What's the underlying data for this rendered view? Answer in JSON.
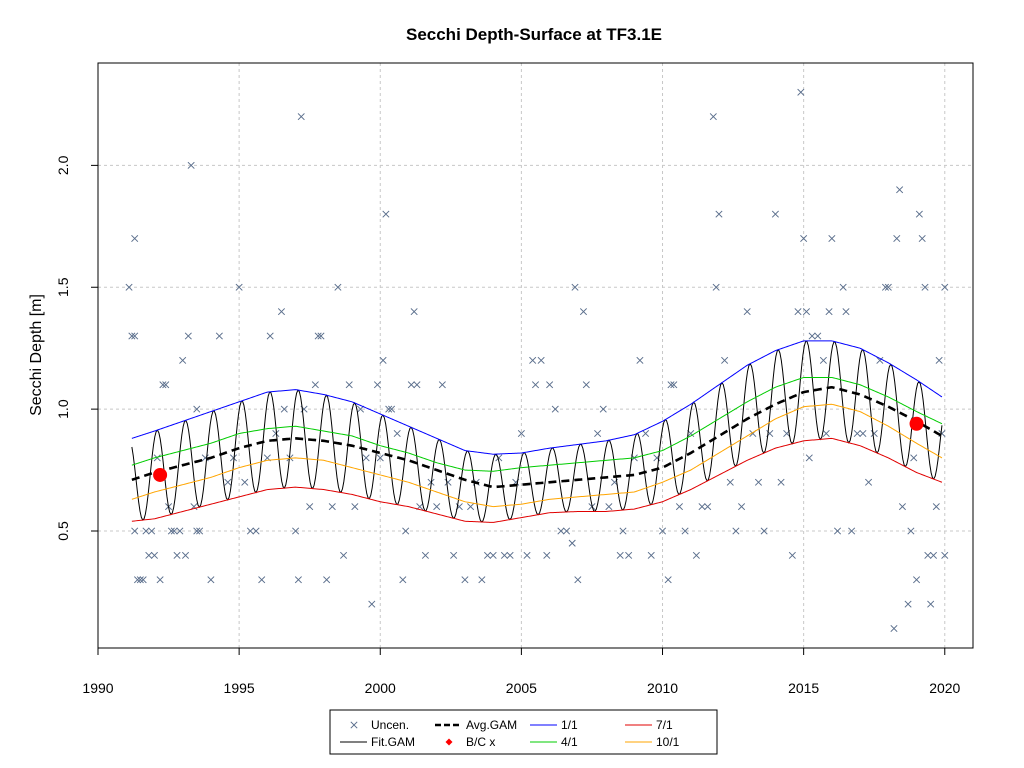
{
  "chart_data": {
    "type": "scatter",
    "title": "Secchi Depth-Surface at TF3.1E",
    "xlabel": "",
    "ylabel": "Secchi Depth [m]",
    "xlim": [
      1990,
      2021
    ],
    "ylim": [
      0.02,
      2.42
    ],
    "x_ticks": [
      1990,
      1995,
      2000,
      2005,
      2010,
      2015,
      2020
    ],
    "x_tick_labels": [
      "1990",
      "1995",
      "2000",
      "2005",
      "2010",
      "2015",
      "2020"
    ],
    "y_ticks": [
      0.5,
      1.0,
      1.5,
      2.0
    ],
    "y_tick_labels": [
      "0.5",
      "1.0",
      "1.5",
      "2.0"
    ],
    "grid": true,
    "legend_placement": "bottom-center, outside plot",
    "legend": [
      {
        "label": "Uncen.",
        "symbol": "x",
        "color": "#5a6e8c"
      },
      {
        "label": "Avg.GAM",
        "symbol": "dashed-line",
        "color": "#000000"
      },
      {
        "label": "1/1",
        "symbol": "line",
        "color": "#0000ff"
      },
      {
        "label": "7/1",
        "symbol": "line",
        "color": "#e00000"
      },
      {
        "label": "Fit.GAM",
        "symbol": "line",
        "color": "#000000"
      },
      {
        "label": "B/C x",
        "symbol": "diamond",
        "color": "#ff0000"
      },
      {
        "label": "4/1",
        "symbol": "line",
        "color": "#00cc00"
      },
      {
        "label": "10/1",
        "symbol": "line",
        "color": "#ffa500"
      }
    ],
    "colors": {
      "points": "#5a6e8c",
      "fit": "#000000",
      "avg": "#000000",
      "d1_1": "#0000ff",
      "d4_1": "#00cc00",
      "d7_1": "#e00000",
      "d10_1": "#ffa500",
      "bc": "#ff0000"
    },
    "trend_curves": {
      "x": [
        1991.2,
        1992,
        1993,
        1994,
        1995,
        1996,
        1997,
        1998,
        1999,
        2000,
        2001,
        2002,
        2003,
        2004,
        2005,
        2006,
        2007,
        2008,
        2009,
        2010,
        2011,
        2012,
        2013,
        2014,
        2015,
        2016,
        2017,
        2018,
        2019,
        2019.9
      ],
      "avg_gam": [
        0.71,
        0.74,
        0.77,
        0.8,
        0.84,
        0.87,
        0.88,
        0.87,
        0.85,
        0.82,
        0.79,
        0.75,
        0.71,
        0.68,
        0.69,
        0.7,
        0.71,
        0.72,
        0.73,
        0.76,
        0.82,
        0.89,
        0.96,
        1.02,
        1.07,
        1.09,
        1.06,
        1.01,
        0.95,
        0.89
      ],
      "band_1_1": [
        0.88,
        0.91,
        0.95,
        0.99,
        1.03,
        1.07,
        1.08,
        1.06,
        1.03,
        0.98,
        0.93,
        0.88,
        0.83,
        0.815,
        0.82,
        0.84,
        0.855,
        0.87,
        0.895,
        0.95,
        1.02,
        1.1,
        1.18,
        1.24,
        1.28,
        1.28,
        1.25,
        1.19,
        1.12,
        1.05
      ],
      "band_4_1": [
        0.77,
        0.8,
        0.83,
        0.86,
        0.9,
        0.92,
        0.93,
        0.91,
        0.89,
        0.85,
        0.82,
        0.78,
        0.75,
        0.745,
        0.76,
        0.77,
        0.78,
        0.79,
        0.8,
        0.83,
        0.89,
        0.96,
        1.03,
        1.09,
        1.13,
        1.13,
        1.1,
        1.05,
        0.99,
        0.94
      ],
      "band_7_1": [
        0.54,
        0.55,
        0.58,
        0.61,
        0.64,
        0.67,
        0.68,
        0.67,
        0.65,
        0.62,
        0.6,
        0.57,
        0.54,
        0.535,
        0.555,
        0.575,
        0.58,
        0.58,
        0.59,
        0.62,
        0.67,
        0.73,
        0.79,
        0.84,
        0.87,
        0.88,
        0.85,
        0.8,
        0.74,
        0.7
      ],
      "band_10_1": [
        0.63,
        0.66,
        0.69,
        0.72,
        0.76,
        0.79,
        0.8,
        0.79,
        0.76,
        0.73,
        0.7,
        0.66,
        0.62,
        0.6,
        0.61,
        0.63,
        0.64,
        0.65,
        0.66,
        0.7,
        0.75,
        0.82,
        0.89,
        0.96,
        1.01,
        1.02,
        0.99,
        0.93,
        0.86,
        0.8
      ]
    },
    "bc_points": [
      {
        "x": 1992.2,
        "y": 0.73
      },
      {
        "x": 2019.0,
        "y": 0.94
      }
    ],
    "observations": [
      [
        1991.1,
        1.5
      ],
      [
        1991.2,
        1.3
      ],
      [
        1991.3,
        1.3
      ],
      [
        1991.3,
        0.5
      ],
      [
        1991.3,
        1.7
      ],
      [
        1991.4,
        0.3
      ],
      [
        1991.5,
        0.3
      ],
      [
        1991.6,
        0.3
      ],
      [
        1991.7,
        0.5
      ],
      [
        1991.8,
        0.4
      ],
      [
        1991.9,
        0.5
      ],
      [
        1992.0,
        0.4
      ],
      [
        1992.1,
        0.8
      ],
      [
        1992.2,
        0.3
      ],
      [
        1992.3,
        1.1
      ],
      [
        1992.4,
        1.1
      ],
      [
        1992.5,
        0.6
      ],
      [
        1992.6,
        0.5
      ],
      [
        1992.7,
        0.5
      ],
      [
        1992.8,
        0.4
      ],
      [
        1992.9,
        0.5
      ],
      [
        1993.0,
        1.2
      ],
      [
        1993.1,
        0.4
      ],
      [
        1993.2,
        1.3
      ],
      [
        1993.3,
        2.0
      ],
      [
        1993.4,
        0.6
      ],
      [
        1993.5,
        1.0
      ],
      [
        1993.5,
        0.5
      ],
      [
        1993.6,
        0.5
      ],
      [
        1993.8,
        0.8
      ],
      [
        1994.0,
        0.3
      ],
      [
        1994.3,
        1.3
      ],
      [
        1994.6,
        0.7
      ],
      [
        1994.8,
        0.8
      ],
      [
        1995.0,
        1.5
      ],
      [
        1995.2,
        0.7
      ],
      [
        1995.4,
        0.5
      ],
      [
        1995.6,
        0.5
      ],
      [
        1995.8,
        0.3
      ],
      [
        1996.0,
        0.8
      ],
      [
        1996.1,
        1.3
      ],
      [
        1996.3,
        0.9
      ],
      [
        1996.5,
        1.4
      ],
      [
        1996.6,
        1.0
      ],
      [
        1996.8,
        0.8
      ],
      [
        1997.0,
        0.5
      ],
      [
        1997.1,
        0.3
      ],
      [
        1997.2,
        2.2
      ],
      [
        1997.3,
        1.0
      ],
      [
        1997.5,
        0.6
      ],
      [
        1997.7,
        1.1
      ],
      [
        1997.8,
        1.3
      ],
      [
        1997.9,
        1.3
      ],
      [
        1998.1,
        0.3
      ],
      [
        1998.3,
        0.6
      ],
      [
        1998.5,
        1.5
      ],
      [
        1998.7,
        0.4
      ],
      [
        1998.9,
        1.1
      ],
      [
        1999.1,
        0.6
      ],
      [
        1999.3,
        1.0
      ],
      [
        1999.5,
        0.8
      ],
      [
        1999.7,
        0.2
      ],
      [
        1999.9,
        1.1
      ],
      [
        2000.0,
        0.8
      ],
      [
        2000.1,
        1.2
      ],
      [
        2000.2,
        1.8
      ],
      [
        2000.3,
        1.0
      ],
      [
        2000.4,
        1.0
      ],
      [
        2000.6,
        0.9
      ],
      [
        2000.8,
        0.3
      ],
      [
        2000.9,
        0.5
      ],
      [
        2001.1,
        1.1
      ],
      [
        2001.2,
        1.4
      ],
      [
        2001.3,
        1.1
      ],
      [
        2001.4,
        0.6
      ],
      [
        2001.6,
        0.4
      ],
      [
        2001.8,
        0.7
      ],
      [
        2002.0,
        0.6
      ],
      [
        2002.2,
        1.1
      ],
      [
        2002.4,
        0.7
      ],
      [
        2002.6,
        0.4
      ],
      [
        2002.8,
        0.6
      ],
      [
        2003.0,
        0.3
      ],
      [
        2003.2,
        0.6
      ],
      [
        2003.4,
        0.7
      ],
      [
        2003.6,
        0.3
      ],
      [
        2003.8,
        0.4
      ],
      [
        2004.0,
        0.4
      ],
      [
        2004.2,
        0.8
      ],
      [
        2004.4,
        0.4
      ],
      [
        2004.6,
        0.4
      ],
      [
        2004.8,
        0.7
      ],
      [
        2005.0,
        0.9
      ],
      [
        2005.2,
        0.4
      ],
      [
        2005.4,
        1.2
      ],
      [
        2005.5,
        1.1
      ],
      [
        2005.7,
        1.2
      ],
      [
        2005.9,
        0.4
      ],
      [
        2006.0,
        1.1
      ],
      [
        2006.2,
        1.0
      ],
      [
        2006.4,
        0.5
      ],
      [
        2006.6,
        0.5
      ],
      [
        2006.8,
        0.45
      ],
      [
        2006.9,
        1.5
      ],
      [
        2007.0,
        0.3
      ],
      [
        2007.2,
        1.4
      ],
      [
        2007.3,
        1.1
      ],
      [
        2007.5,
        0.6
      ],
      [
        2007.7,
        0.9
      ],
      [
        2007.9,
        1.0
      ],
      [
        2008.1,
        0.6
      ],
      [
        2008.3,
        0.7
      ],
      [
        2008.5,
        0.4
      ],
      [
        2008.6,
        0.5
      ],
      [
        2008.8,
        0.4
      ],
      [
        2009.0,
        0.8
      ],
      [
        2009.2,
        1.2
      ],
      [
        2009.4,
        0.9
      ],
      [
        2009.6,
        0.4
      ],
      [
        2009.8,
        0.8
      ],
      [
        2010.0,
        0.5
      ],
      [
        2010.2,
        0.3
      ],
      [
        2010.3,
        1.1
      ],
      [
        2010.4,
        1.1
      ],
      [
        2010.6,
        0.6
      ],
      [
        2010.8,
        0.5
      ],
      [
        2011.0,
        0.9
      ],
      [
        2011.2,
        0.4
      ],
      [
        2011.4,
        0.6
      ],
      [
        2011.6,
        0.6
      ],
      [
        2011.8,
        2.2
      ],
      [
        2011.9,
        1.5
      ],
      [
        2012.0,
        1.8
      ],
      [
        2012.2,
        1.2
      ],
      [
        2012.4,
        0.7
      ],
      [
        2012.6,
        0.5
      ],
      [
        2012.8,
        0.6
      ],
      [
        2013.0,
        1.4
      ],
      [
        2013.2,
        0.9
      ],
      [
        2013.4,
        0.7
      ],
      [
        2013.6,
        0.5
      ],
      [
        2013.8,
        0.9
      ],
      [
        2014.0,
        1.8
      ],
      [
        2014.2,
        0.7
      ],
      [
        2014.4,
        0.9
      ],
      [
        2014.6,
        0.4
      ],
      [
        2014.8,
        1.4
      ],
      [
        2014.9,
        2.3
      ],
      [
        2015.0,
        1.7
      ],
      [
        2015.1,
        1.4
      ],
      [
        2015.2,
        0.8
      ],
      [
        2015.3,
        1.3
      ],
      [
        2015.5,
        1.3
      ],
      [
        2015.7,
        1.2
      ],
      [
        2015.8,
        0.9
      ],
      [
        2015.9,
        1.4
      ],
      [
        2016.0,
        1.7
      ],
      [
        2016.2,
        0.5
      ],
      [
        2016.4,
        1.5
      ],
      [
        2016.5,
        1.4
      ],
      [
        2016.7,
        0.5
      ],
      [
        2016.9,
        0.9
      ],
      [
        2017.1,
        0.9
      ],
      [
        2017.3,
        0.7
      ],
      [
        2017.5,
        0.9
      ],
      [
        2017.7,
        1.2
      ],
      [
        2017.9,
        1.5
      ],
      [
        2018.0,
        1.5
      ],
      [
        2018.2,
        0.1
      ],
      [
        2018.3,
        1.7
      ],
      [
        2018.4,
        1.9
      ],
      [
        2018.5,
        0.6
      ],
      [
        2018.7,
        0.2
      ],
      [
        2018.8,
        0.5
      ],
      [
        2018.9,
        0.8
      ],
      [
        2019.0,
        0.3
      ],
      [
        2019.1,
        1.8
      ],
      [
        2019.2,
        1.7
      ],
      [
        2019.3,
        1.5
      ],
      [
        2019.4,
        0.4
      ],
      [
        2019.5,
        0.2
      ],
      [
        2019.6,
        0.4
      ],
      [
        2019.7,
        0.6
      ],
      [
        2019.8,
        1.2
      ],
      [
        2019.9,
        0.9
      ],
      [
        2020.0,
        0.4
      ],
      [
        2020.0,
        1.5
      ]
    ]
  }
}
